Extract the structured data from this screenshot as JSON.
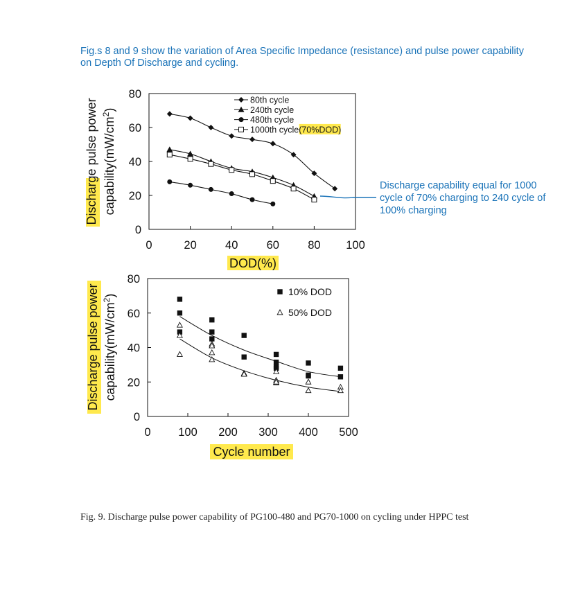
{
  "intro_text": "Fig.s 8 and 9 show the variation of Area Specific Impedance (resistance) and pulse power capability on Depth Of Discharge and cycling.",
  "callout_text": "Discharge capability equal for 1000 cycle of 70% charging to 240 cycle of 100% charging",
  "caption_text": "Fig. 9. Discharge pulse power capability of PG100-480 and PG70-1000 on cycling under HPPC test",
  "colors": {
    "text_blue": "#1a73b8",
    "highlight": "#ffe94d",
    "ink": "#111111"
  },
  "chart_data": [
    {
      "type": "line",
      "title": "",
      "xlabel": "DOD(%)",
      "ylabel_line1": "Discharge pulse power",
      "ylabel_line2_prefix": "capability(mW/cm",
      "ylabel_sup": "2",
      "ylabel_line2_suffix": ")",
      "xlim": [
        0,
        100
      ],
      "ylim": [
        0,
        80
      ],
      "xticks": [
        0,
        20,
        40,
        60,
        80,
        100
      ],
      "yticks": [
        0,
        20,
        40,
        60,
        80
      ],
      "legend_position": "top-center",
      "series": [
        {
          "name": "80th cycle",
          "marker": "diamond",
          "x": [
            10,
            20,
            30,
            40,
            50,
            60,
            70,
            80,
            90
          ],
          "y": [
            68,
            65.5,
            60,
            55,
            53,
            50.5,
            44,
            33,
            24
          ]
        },
        {
          "name": "240th cycle",
          "marker": "triangle",
          "x": [
            10,
            20,
            30,
            40,
            50,
            60,
            70,
            80
          ],
          "y": [
            47,
            44.5,
            40,
            36,
            34,
            30.5,
            26,
            19.5
          ]
        },
        {
          "name": "480th cycle",
          "marker": "circle",
          "x": [
            10,
            20,
            30,
            40,
            50,
            60
          ],
          "y": [
            28,
            26,
            23.5,
            21,
            17.5,
            15
          ]
        },
        {
          "name": "1000th cycle",
          "name_highlight": "(70%DOD)",
          "marker": "square-open",
          "x": [
            10,
            20,
            30,
            40,
            50,
            60,
            70,
            80
          ],
          "y": [
            44,
            41.5,
            38.5,
            35,
            32.5,
            28.5,
            24,
            17.5
          ]
        }
      ]
    },
    {
      "type": "scatter",
      "title": "",
      "xlabel": "Cycle number",
      "ylabel_line1": "Discharge pulse power",
      "ylabel_line2_prefix": "capability(mW/cm",
      "ylabel_sup": "2",
      "ylabel_line2_suffix": ")",
      "xlim": [
        0,
        500
      ],
      "ylim": [
        0,
        80
      ],
      "xticks": [
        0,
        100,
        200,
        300,
        400,
        500
      ],
      "yticks": [
        0,
        20,
        40,
        60,
        80
      ],
      "legend_position": "top-right",
      "series": [
        {
          "name": "10% DOD",
          "marker": "square",
          "x": [
            80,
            80,
            80,
            160,
            160,
            160,
            240,
            240,
            320,
            320,
            320,
            320,
            400,
            400,
            400,
            480,
            480
          ],
          "y": [
            68,
            60,
            49,
            56,
            49,
            45,
            47,
            34.5,
            36,
            31.5,
            29,
            28,
            31,
            24,
            23.5,
            28,
            23
          ],
          "trend_x": [
            80,
            160,
            240,
            320,
            400,
            480
          ],
          "trend_y": [
            58,
            47,
            38.5,
            32,
            26,
            23
          ]
        },
        {
          "name": "50% DOD",
          "marker": "triangle-open",
          "x": [
            80,
            80,
            80,
            160,
            160,
            160,
            160,
            240,
            240,
            320,
            320,
            320,
            320,
            400,
            400,
            480,
            480
          ],
          "y": [
            53,
            47,
            36,
            42,
            37,
            33,
            41,
            25,
            24.5,
            26,
            21,
            19.5,
            20,
            20,
            15,
            17,
            15
          ],
          "trend_x": [
            80,
            160,
            240,
            320,
            400,
            480
          ],
          "trend_y": [
            45,
            34,
            26.5,
            21,
            17,
            14.5
          ]
        }
      ]
    }
  ]
}
